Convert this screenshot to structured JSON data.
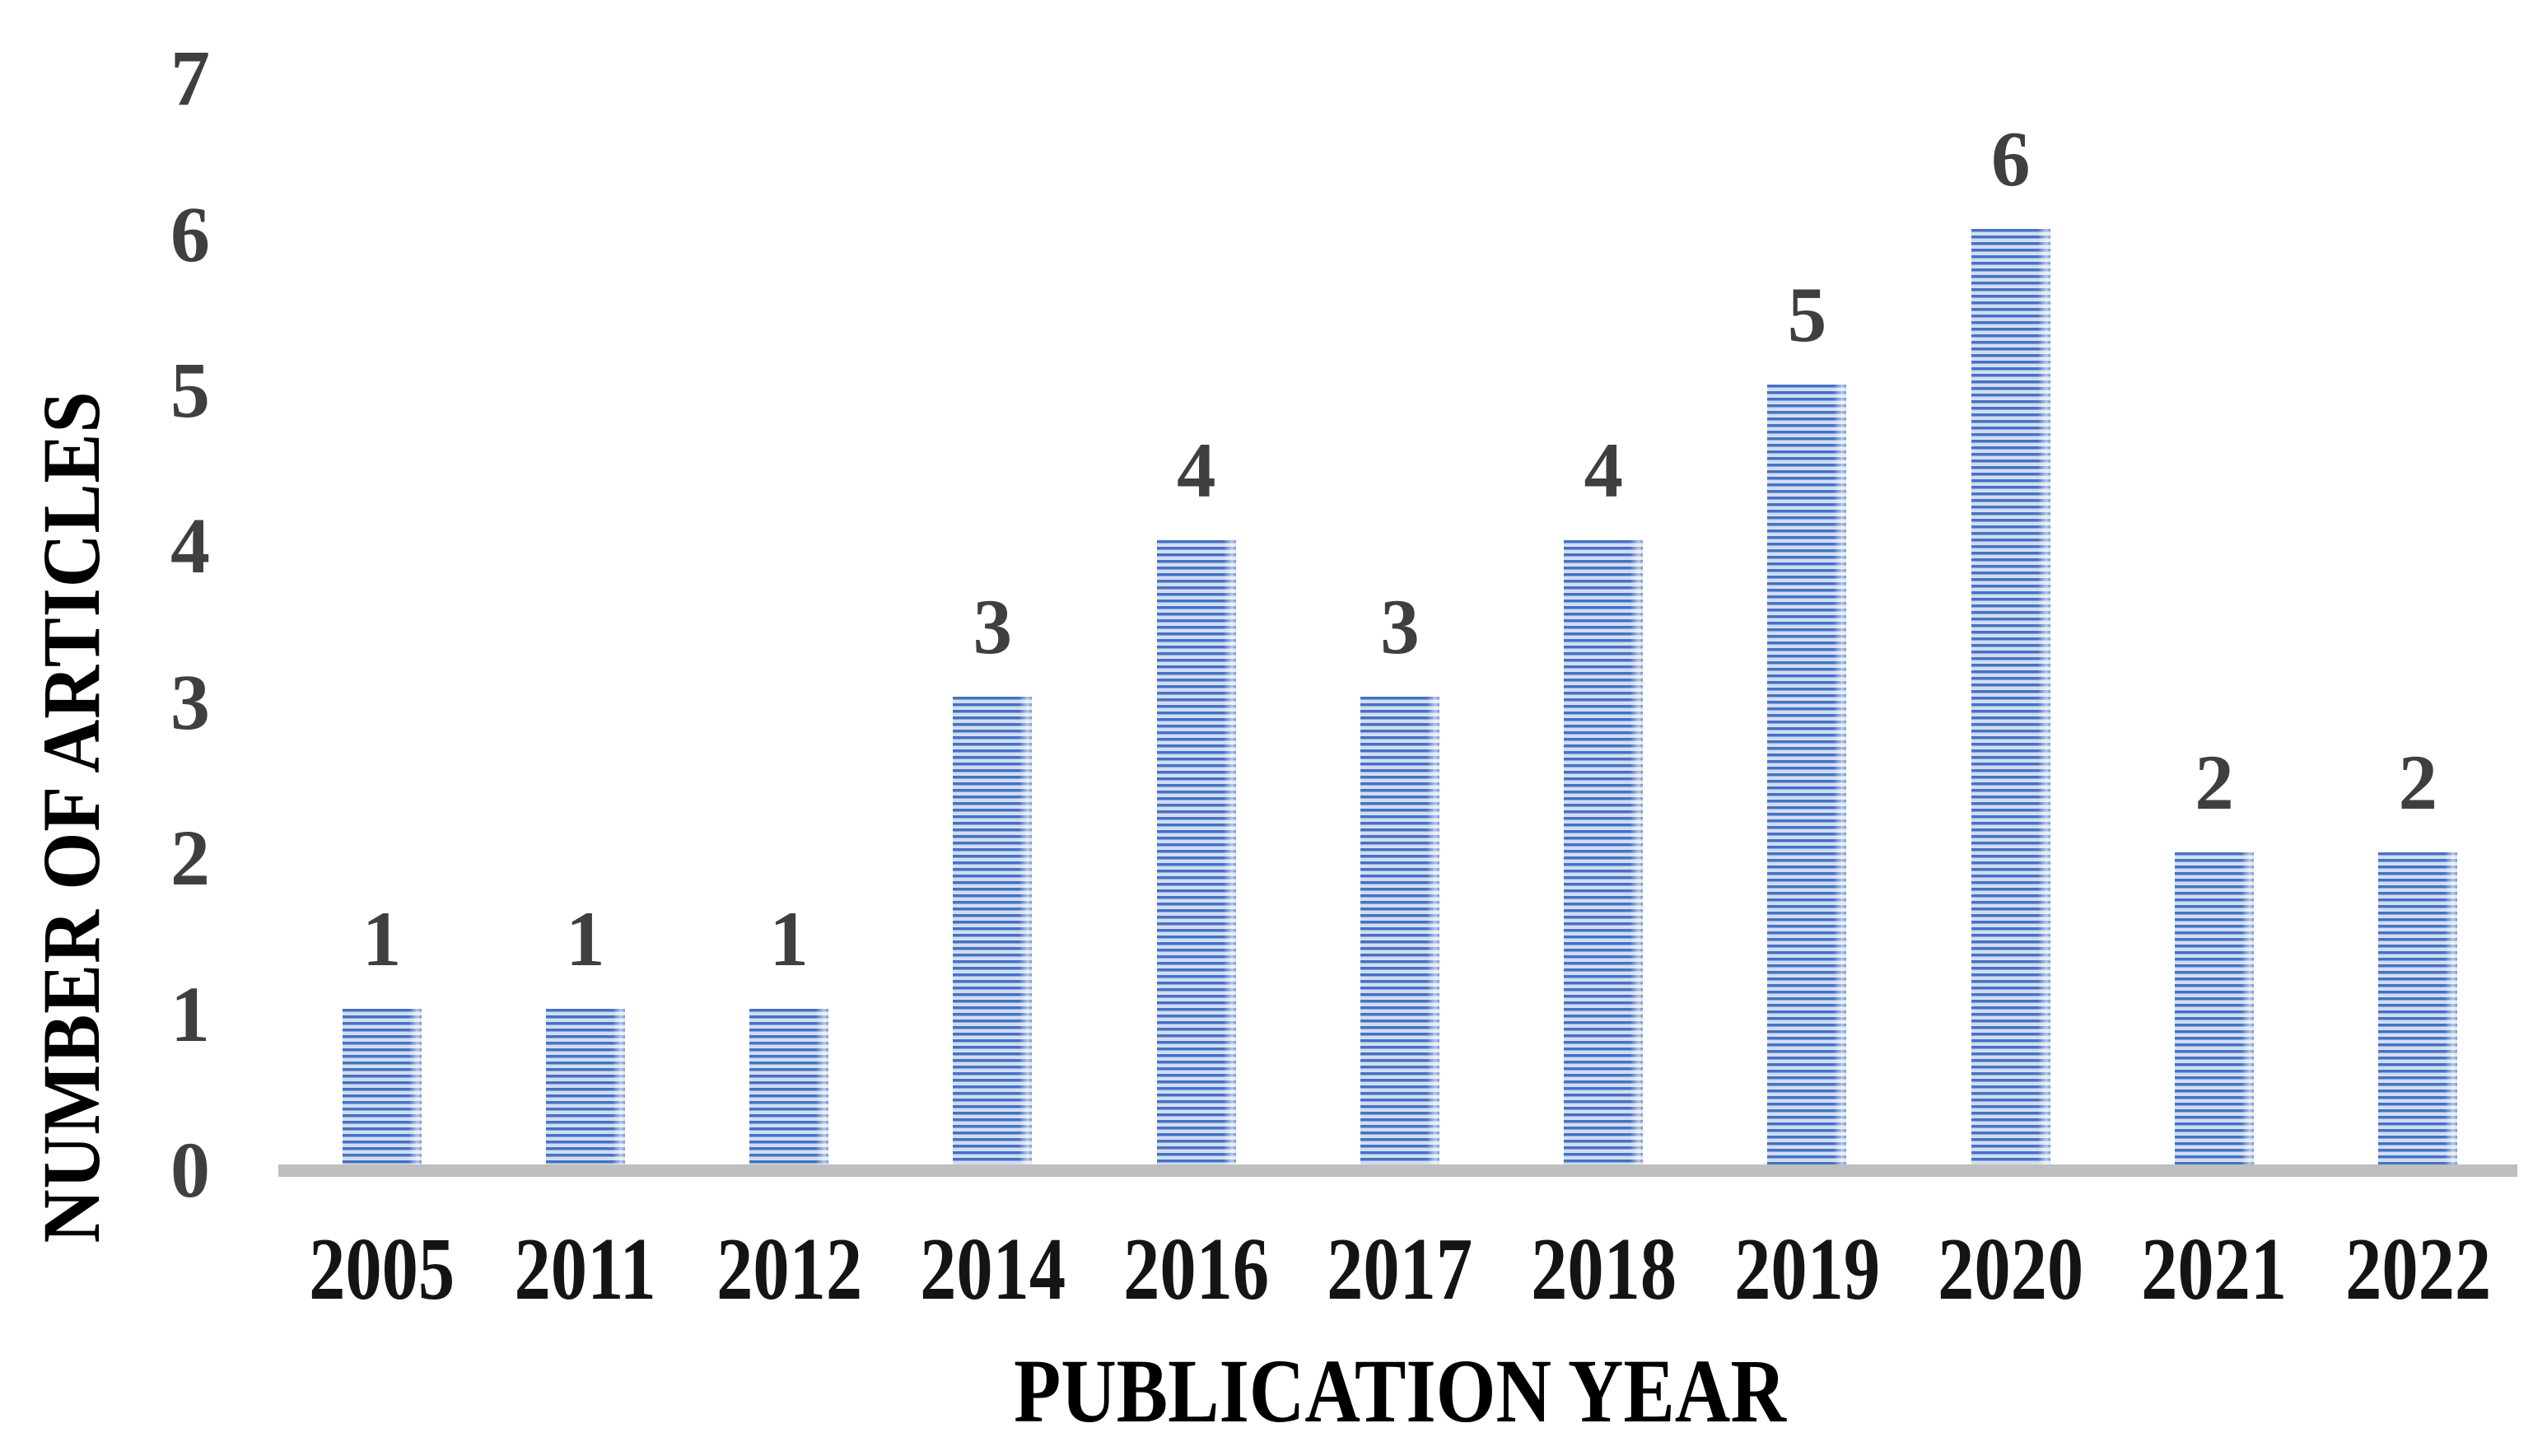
{
  "chart_data": {
    "type": "bar",
    "title": "",
    "categories": [
      "2005",
      "2011",
      "2012",
      "2014",
      "2016",
      "2017",
      "2018",
      "2019",
      "2020",
      "2021",
      "2022"
    ],
    "values": [
      1,
      1,
      1,
      3,
      4,
      3,
      4,
      5,
      6,
      2,
      2
    ],
    "xlabel": "PUBLICATION YEAR",
    "ylabel": "NUMBER OF ARTICLES",
    "ylim": [
      0,
      7
    ],
    "ytick_step": 1,
    "yticks": [
      0,
      1,
      2,
      3,
      4,
      5,
      6,
      7
    ],
    "grid": false,
    "legend": false,
    "data_labels_shown": true,
    "bar_fill_pattern": "horizontal-stripes",
    "colors": {
      "bar_stripe_dark": "#4472c4",
      "bar_stripe_light": "#d2ddf1",
      "baseline": "#bfbfbf",
      "tick_label": "#3f3f3f",
      "value_label": "#3f3f3f",
      "year_label": "#141414",
      "axis_title": "#000000",
      "background": "#ffffff"
    }
  }
}
